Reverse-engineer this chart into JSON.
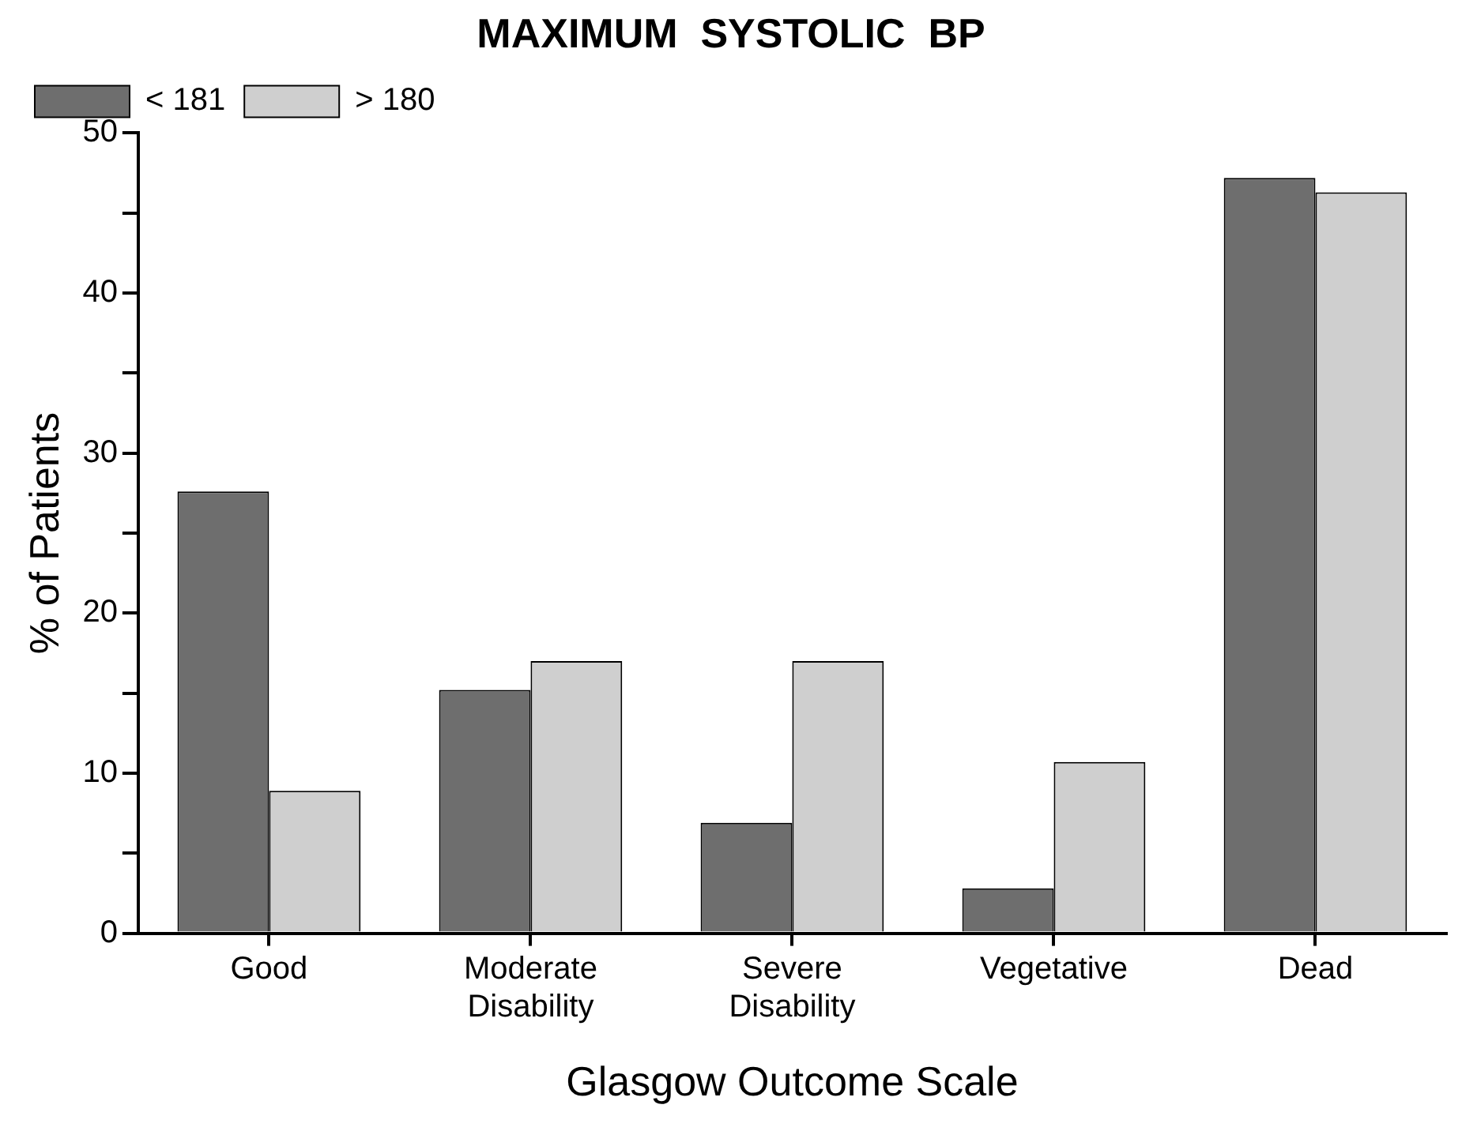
{
  "chart_data": {
    "type": "bar",
    "title": "MAXIMUM  SYSTOLIC  BP",
    "xlabel": "Glasgow Outcome Scale",
    "ylabel": "% of Patients",
    "categories": [
      "Good",
      "Moderate Disability",
      "Severe Disability",
      "Vegetative",
      "Dead"
    ],
    "series": [
      {
        "name": "< 181",
        "color": "#6e6e6e",
        "values": [
          27.6,
          15.2,
          6.9,
          2.8,
          47.2
        ]
      },
      {
        "name": "> 180",
        "color": "#cfcfcf",
        "values": [
          8.9,
          17.0,
          17.0,
          10.7,
          46.3
        ]
      }
    ],
    "ylim": [
      0,
      50
    ],
    "yticks": [
      0,
      {
        "value": 5,
        "label": null
      },
      10,
      {
        "value": 15,
        "label": null
      },
      20,
      {
        "value": 25,
        "label": null
      },
      30,
      {
        "value": 35,
        "label": null
      },
      40,
      {
        "value": 45,
        "label": null
      },
      50
    ],
    "grid": false,
    "legend": "top left"
  }
}
